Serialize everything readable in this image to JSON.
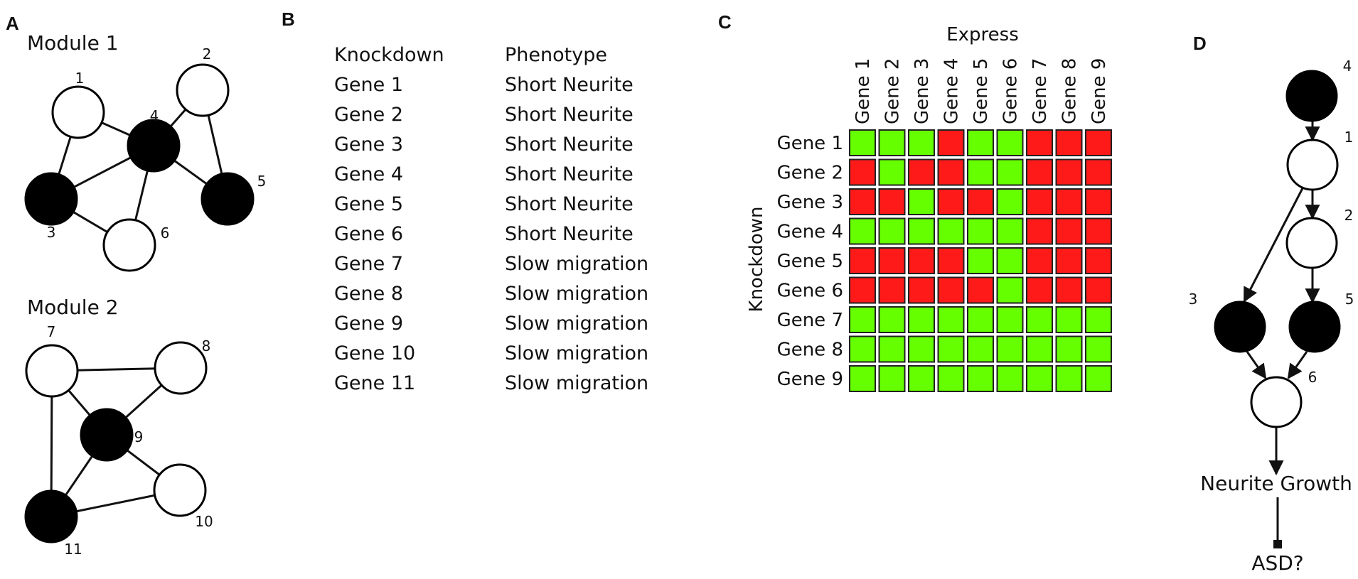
{
  "panels": {
    "a": "A",
    "b": "B",
    "c": "C",
    "d": "D"
  },
  "panel_a": {
    "module1": {
      "title": "Module 1",
      "nodes": [
        {
          "id": 1,
          "label": "1",
          "filled": false
        },
        {
          "id": 2,
          "label": "2",
          "filled": false
        },
        {
          "id": 3,
          "label": "3",
          "filled": true
        },
        {
          "id": 4,
          "label": "4",
          "filled": true
        },
        {
          "id": 5,
          "label": "5",
          "filled": true
        },
        {
          "id": 6,
          "label": "6",
          "filled": false
        }
      ],
      "edges": [
        [
          1,
          3
        ],
        [
          1,
          4
        ],
        [
          3,
          4
        ],
        [
          3,
          6
        ],
        [
          4,
          6
        ],
        [
          4,
          2
        ],
        [
          2,
          5
        ],
        [
          4,
          5
        ]
      ]
    },
    "module2": {
      "title": "Module 2",
      "nodes": [
        {
          "id": 7,
          "label": "7",
          "filled": false
        },
        {
          "id": 8,
          "label": "8",
          "filled": false
        },
        {
          "id": 9,
          "label": "9",
          "filled": true
        },
        {
          "id": 10,
          "label": "10",
          "filled": false
        },
        {
          "id": 11,
          "label": "11",
          "filled": true
        }
      ],
      "edges": [
        [
          7,
          8
        ],
        [
          7,
          9
        ],
        [
          7,
          11
        ],
        [
          8,
          9
        ],
        [
          9,
          10
        ],
        [
          9,
          11
        ],
        [
          11,
          10
        ]
      ]
    }
  },
  "panel_b": {
    "headers": [
      "Knockdown",
      "Phenotype"
    ],
    "rows": [
      [
        "Gene 1",
        "Short Neurite"
      ],
      [
        "Gene 2",
        "Short Neurite"
      ],
      [
        "Gene 3",
        "Short Neurite"
      ],
      [
        "Gene 4",
        "Short Neurite"
      ],
      [
        "Gene 5",
        "Short Neurite"
      ],
      [
        "Gene 6",
        "Short Neurite"
      ],
      [
        "Gene 7",
        "Slow migration"
      ],
      [
        "Gene 8",
        "Slow migration"
      ],
      [
        "Gene 9",
        "Slow migration"
      ],
      [
        "Gene 10",
        "Slow migration"
      ],
      [
        "Gene 11",
        "Slow migration"
      ]
    ]
  },
  "panel_c": {
    "col_title": "Express",
    "row_title": "Knockdown",
    "columns": [
      "Gene 1",
      "Gene 2",
      "Gene 3",
      "Gene 4",
      "Gene 5",
      "Gene 6",
      "Gene 7",
      "Gene 8",
      "Gene 9"
    ],
    "rows": [
      "Gene 1",
      "Gene 2",
      "Gene 3",
      "Gene 4",
      "Gene 5",
      "Gene 6",
      "Gene 7",
      "Gene 8",
      "Gene 9"
    ],
    "matrix": [
      [
        "G",
        "G",
        "G",
        "R",
        "G",
        "G",
        "R",
        "R",
        "R"
      ],
      [
        "R",
        "G",
        "R",
        "R",
        "G",
        "G",
        "R",
        "R",
        "R"
      ],
      [
        "R",
        "R",
        "G",
        "R",
        "R",
        "G",
        "R",
        "R",
        "R"
      ],
      [
        "G",
        "G",
        "G",
        "G",
        "G",
        "G",
        "R",
        "R",
        "R"
      ],
      [
        "R",
        "R",
        "R",
        "R",
        "G",
        "G",
        "R",
        "R",
        "R"
      ],
      [
        "R",
        "R",
        "R",
        "R",
        "R",
        "G",
        "R",
        "R",
        "R"
      ],
      [
        "G",
        "G",
        "G",
        "G",
        "G",
        "G",
        "G",
        "G",
        "G"
      ],
      [
        "G",
        "G",
        "G",
        "G",
        "G",
        "G",
        "G",
        "G",
        "G"
      ],
      [
        "G",
        "G",
        "G",
        "G",
        "G",
        "G",
        "G",
        "G",
        "G"
      ]
    ],
    "colors": {
      "G": "#66ff00",
      "R": "#ff1a1a"
    }
  },
  "panel_d": {
    "nodes": [
      {
        "id": 4,
        "label": "4",
        "filled": true
      },
      {
        "id": 1,
        "label": "1",
        "filled": false
      },
      {
        "id": 2,
        "label": "2",
        "filled": false
      },
      {
        "id": 3,
        "label": "3",
        "filled": true
      },
      {
        "id": 5,
        "label": "5",
        "filled": true
      },
      {
        "id": 6,
        "label": "6",
        "filled": false
      }
    ],
    "outcome": "Neurite Growth",
    "disease": "ASD?"
  }
}
